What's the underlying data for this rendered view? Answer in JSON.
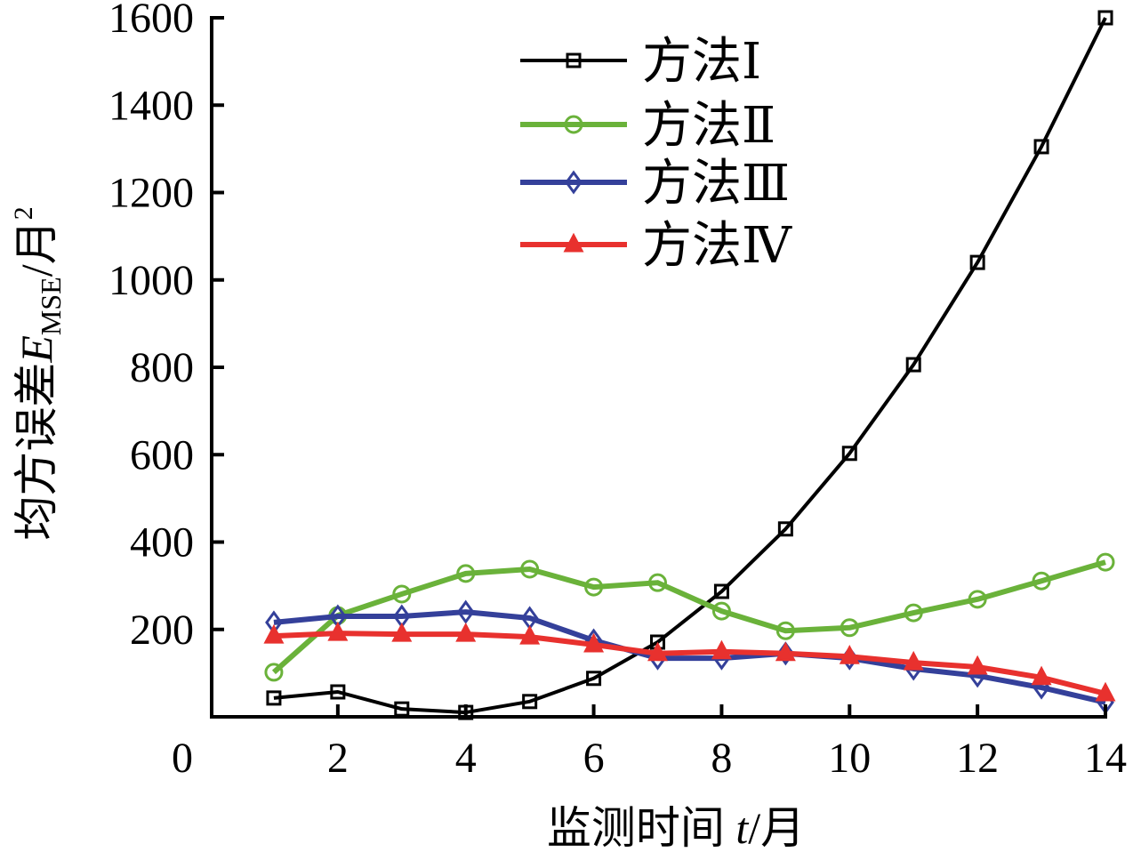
{
  "chart_data": {
    "type": "line",
    "title": "",
    "xlabel": {
      "main": "监测时间 ",
      "var": "t",
      "unit": "/月"
    },
    "ylabel": {
      "main": "均方误差",
      "var": "E",
      "sub": "MSE",
      "unit": "/月",
      "sup": "2"
    },
    "xlim": [
      0,
      14
    ],
    "ylim": [
      0,
      1600
    ],
    "origin_label": "0",
    "xticks": [
      2,
      4,
      6,
      8,
      10,
      12,
      14
    ],
    "yticks": [
      200,
      400,
      600,
      800,
      1000,
      1200,
      1400,
      1600
    ],
    "grid": false,
    "legend_position": "top-center",
    "x": [
      1,
      2,
      3,
      4,
      5,
      6,
      7,
      8,
      9,
      10,
      11,
      12,
      13,
      14
    ],
    "series": [
      {
        "name": "方法Ⅰ",
        "color": "#000000",
        "marker": "square",
        "values": [
          43,
          57,
          18,
          10,
          35,
          88,
          171,
          287,
          430,
          603,
          806,
          1040,
          1305,
          1600
        ]
      },
      {
        "name": "方法Ⅱ",
        "color": "#6ab23a",
        "marker": "circle",
        "values": [
          102,
          232,
          281,
          328,
          338,
          297,
          307,
          242,
          197,
          204,
          238,
          269,
          311,
          354
        ]
      },
      {
        "name": "方法Ⅲ",
        "color": "#34409a",
        "marker": "diamond",
        "values": [
          216,
          230,
          230,
          240,
          226,
          175,
          134,
          134,
          145,
          134,
          110,
          94,
          67,
          33
        ]
      },
      {
        "name": "方法Ⅳ",
        "color": "#e8312e",
        "marker": "triangle",
        "values": [
          185,
          191,
          189,
          189,
          183,
          165,
          145,
          149,
          145,
          138,
          124,
          114,
          90,
          53
        ]
      }
    ]
  }
}
